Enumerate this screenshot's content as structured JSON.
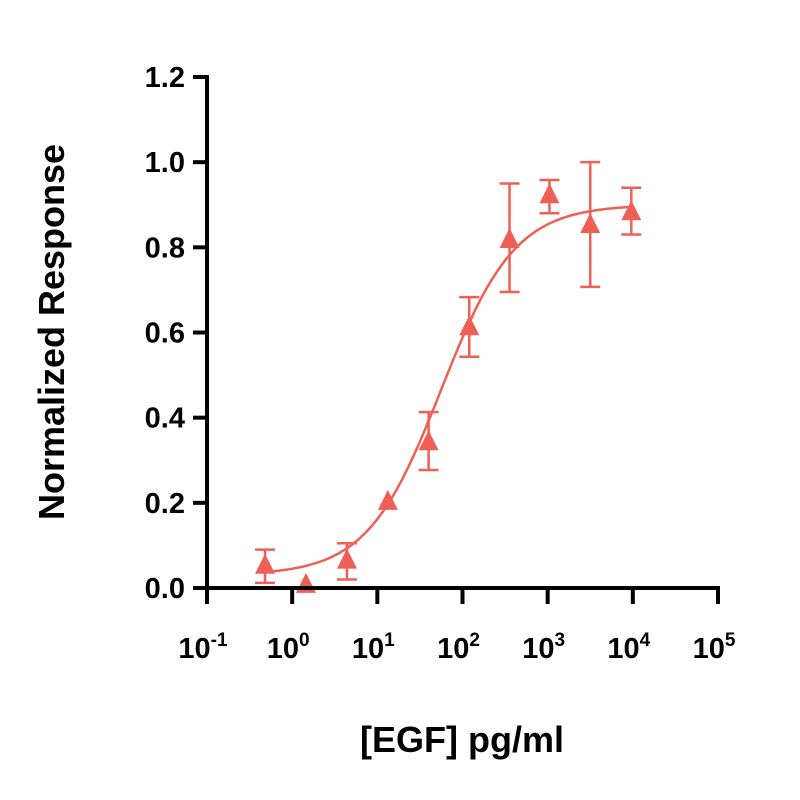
{
  "chart_data": {
    "type": "scatter",
    "xlabel": "[EGF] pg/ml",
    "ylabel": "Normalized Response",
    "x_scale": "log10",
    "xlim": [
      0.1,
      100000
    ],
    "ylim": [
      0,
      1.2
    ],
    "x_ticks": [
      {
        "base": "10",
        "exp": "-1"
      },
      {
        "base": "10",
        "exp": "0"
      },
      {
        "base": "10",
        "exp": "1"
      },
      {
        "base": "10",
        "exp": "2"
      },
      {
        "base": "10",
        "exp": "3"
      },
      {
        "base": "10",
        "exp": "4"
      },
      {
        "base": "10",
        "exp": "5"
      }
    ],
    "y_ticks": [
      "0.0",
      "0.2",
      "0.4",
      "0.6",
      "0.8",
      "1.0",
      "1.2"
    ],
    "grid": false,
    "color": "#EE6055",
    "marker": "triangle",
    "points": [
      {
        "x": 0.48,
        "y": 0.05,
        "err_low": 0.012,
        "err_high": 0.09
      },
      {
        "x": 1.45,
        "y": 0.005
      },
      {
        "x": 4.4,
        "y": 0.062,
        "err_low": 0.02,
        "err_high": 0.105
      },
      {
        "x": 13.3,
        "y": 0.2
      },
      {
        "x": 40,
        "y": 0.34,
        "err_low": 0.277,
        "err_high": 0.413
      },
      {
        "x": 120,
        "y": 0.61,
        "err_low": 0.543,
        "err_high": 0.683
      },
      {
        "x": 357,
        "y": 0.815,
        "err_low": 0.695,
        "err_high": 0.95
      },
      {
        "x": 1050,
        "y": 0.92,
        "err_low": 0.88,
        "err_high": 0.958
      },
      {
        "x": 3160,
        "y": 0.85,
        "err_low": 0.707,
        "err_high": 1.0
      },
      {
        "x": 9600,
        "y": 0.88,
        "err_low": 0.83,
        "err_high": 0.94
      }
    ],
    "fit_curve": {
      "model": "4PL",
      "bottom": 0.03,
      "top": 0.9,
      "ec50": 56,
      "hill": 1.0,
      "x_range": [
        0.48,
        9600
      ]
    }
  }
}
